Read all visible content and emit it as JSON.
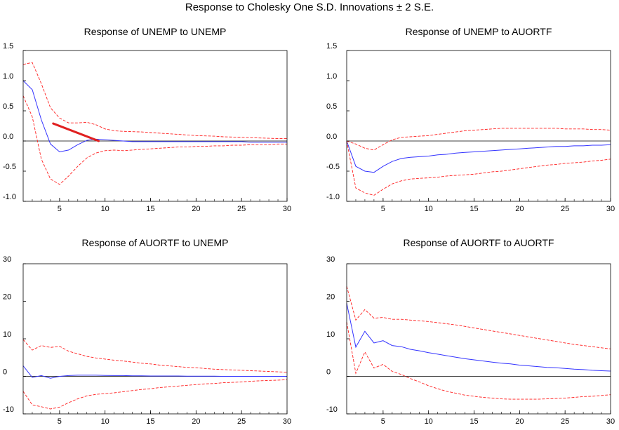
{
  "title": "Response to Cholesky One S.D. Innovations ± 2 S.E.",
  "colors": {
    "response": "#3333ff",
    "bands": "#ff2020",
    "annotation": "#e02020",
    "zero_line": "#000000",
    "frame": "#000000"
  },
  "chart_data": [
    {
      "type": "line",
      "title": "Response of UNEMP to UNEMP",
      "xlim": [
        1,
        30
      ],
      "ylim": [
        -1.0,
        1.5
      ],
      "xticks": [
        5,
        10,
        15,
        20,
        25,
        30
      ],
      "yticks": [
        "1.5",
        "1.0",
        "0.5",
        "0.0",
        "-0.5",
        "-1.0"
      ],
      "x": [
        1,
        2,
        3,
        4,
        5,
        6,
        7,
        8,
        9,
        10,
        11,
        12,
        13,
        14,
        15,
        16,
        17,
        18,
        19,
        20,
        21,
        22,
        23,
        24,
        25,
        26,
        27,
        28,
        29,
        30
      ],
      "series": [
        {
          "role": "response",
          "values": [
            1.0,
            0.85,
            0.35,
            -0.05,
            -0.18,
            -0.15,
            -0.06,
            0.01,
            0.03,
            0.02,
            0.01,
            0.0,
            -0.01,
            -0.01,
            -0.01,
            -0.01,
            -0.01,
            -0.01,
            -0.01,
            -0.01,
            -0.01,
            -0.01,
            -0.01,
            -0.01,
            -0.01,
            -0.02,
            -0.02,
            -0.02,
            -0.02,
            -0.02
          ]
        },
        {
          "role": "upper",
          "values": [
            1.27,
            1.3,
            0.95,
            0.55,
            0.38,
            0.3,
            0.3,
            0.31,
            0.27,
            0.2,
            0.17,
            0.16,
            0.155,
            0.15,
            0.14,
            0.13,
            0.12,
            0.11,
            0.1,
            0.09,
            0.085,
            0.08,
            0.07,
            0.065,
            0.06,
            0.055,
            0.05,
            0.045,
            0.04,
            0.04
          ]
        },
        {
          "role": "lower",
          "values": [
            0.75,
            0.4,
            -0.3,
            -0.63,
            -0.72,
            -0.58,
            -0.42,
            -0.28,
            -0.2,
            -0.16,
            -0.15,
            -0.16,
            -0.15,
            -0.14,
            -0.13,
            -0.12,
            -0.11,
            -0.1,
            -0.1,
            -0.09,
            -0.09,
            -0.08,
            -0.08,
            -0.07,
            -0.07,
            -0.06,
            -0.06,
            -0.06,
            -0.05,
            -0.05
          ]
        }
      ],
      "annotation": {
        "from": [
          4.3,
          0.29
        ],
        "to": [
          9.3,
          0.0
        ]
      }
    },
    {
      "type": "line",
      "title": "Response of UNEMP to AUORTF",
      "xlim": [
        1,
        30
      ],
      "ylim": [
        -1.0,
        1.5
      ],
      "xticks": [
        5,
        10,
        15,
        20,
        25,
        30
      ],
      "yticks": [
        "1.5",
        "1.0",
        "0.5",
        "0.0",
        "-0.5",
        "-1.0"
      ],
      "x": [
        1,
        2,
        3,
        4,
        5,
        6,
        7,
        8,
        9,
        10,
        11,
        12,
        13,
        14,
        15,
        16,
        17,
        18,
        19,
        20,
        21,
        22,
        23,
        24,
        25,
        26,
        27,
        28,
        29,
        30
      ],
      "series": [
        {
          "role": "response",
          "values": [
            0.0,
            -0.42,
            -0.5,
            -0.52,
            -0.42,
            -0.34,
            -0.29,
            -0.27,
            -0.26,
            -0.25,
            -0.23,
            -0.22,
            -0.2,
            -0.19,
            -0.18,
            -0.17,
            -0.16,
            -0.15,
            -0.14,
            -0.13,
            -0.12,
            -0.11,
            -0.1,
            -0.09,
            -0.09,
            -0.08,
            -0.08,
            -0.07,
            -0.07,
            -0.06
          ]
        },
        {
          "role": "upper",
          "values": [
            0.0,
            -0.05,
            -0.12,
            -0.15,
            -0.06,
            0.02,
            0.06,
            0.07,
            0.08,
            0.09,
            0.11,
            0.13,
            0.15,
            0.17,
            0.18,
            0.19,
            0.2,
            0.21,
            0.21,
            0.21,
            0.21,
            0.21,
            0.21,
            0.21,
            0.2,
            0.2,
            0.2,
            0.19,
            0.19,
            0.18
          ]
        },
        {
          "role": "lower",
          "values": [
            0.0,
            -0.78,
            -0.86,
            -0.9,
            -0.8,
            -0.71,
            -0.66,
            -0.63,
            -0.62,
            -0.61,
            -0.6,
            -0.58,
            -0.57,
            -0.56,
            -0.55,
            -0.53,
            -0.51,
            -0.5,
            -0.48,
            -0.46,
            -0.44,
            -0.42,
            -0.4,
            -0.39,
            -0.37,
            -0.36,
            -0.35,
            -0.33,
            -0.32,
            -0.3
          ]
        }
      ]
    },
    {
      "type": "line",
      "title": "Response of AUORTF to UNEMP",
      "xlim": [
        1,
        30
      ],
      "ylim": [
        -10,
        30
      ],
      "xticks": [
        5,
        10,
        15,
        20,
        25,
        30
      ],
      "yticks": [
        "30",
        "20",
        "10",
        "0",
        "-10"
      ],
      "x": [
        1,
        2,
        3,
        4,
        5,
        6,
        7,
        8,
        9,
        10,
        11,
        12,
        13,
        14,
        15,
        16,
        17,
        18,
        19,
        20,
        21,
        22,
        23,
        24,
        25,
        26,
        27,
        28,
        29,
        30
      ],
      "series": [
        {
          "role": "response",
          "values": [
            2.8,
            -0.3,
            0.2,
            -0.5,
            0.0,
            0.2,
            0.3,
            0.3,
            0.3,
            0.25,
            0.2,
            0.2,
            0.15,
            0.15,
            0.1,
            0.1,
            0.1,
            0.1,
            0.05,
            0.05,
            0.05,
            0.05,
            0.0,
            0.0,
            0.0,
            0.0,
            0.0,
            0.0,
            0.0,
            0.0
          ]
        },
        {
          "role": "upper",
          "values": [
            9.8,
            7.0,
            8.2,
            7.7,
            8.0,
            6.7,
            6.0,
            5.3,
            4.9,
            4.6,
            4.3,
            4.1,
            3.8,
            3.5,
            3.3,
            3.0,
            2.8,
            2.6,
            2.4,
            2.3,
            2.1,
            1.9,
            1.8,
            1.7,
            1.6,
            1.5,
            1.4,
            1.3,
            1.2,
            1.1
          ]
        },
        {
          "role": "lower",
          "values": [
            -4.0,
            -7.6,
            -8.1,
            -8.7,
            -8.2,
            -7.0,
            -6.0,
            -5.2,
            -4.8,
            -4.6,
            -4.4,
            -4.1,
            -3.8,
            -3.5,
            -3.3,
            -3.0,
            -2.8,
            -2.6,
            -2.4,
            -2.2,
            -2.0,
            -1.9,
            -1.7,
            -1.6,
            -1.5,
            -1.3,
            -1.2,
            -1.1,
            -1.0,
            -0.9
          ]
        }
      ]
    },
    {
      "type": "line",
      "title": "Response of AUORTF to AUORTF",
      "xlim": [
        1,
        30
      ],
      "ylim": [
        -10,
        30
      ],
      "xticks": [
        5,
        10,
        15,
        20,
        25,
        30
      ],
      "yticks": [
        "30",
        "20",
        "10",
        "0",
        "-10"
      ],
      "x": [
        1,
        2,
        3,
        4,
        5,
        6,
        7,
        8,
        9,
        10,
        11,
        12,
        13,
        14,
        15,
        16,
        17,
        18,
        19,
        20,
        21,
        22,
        23,
        24,
        25,
        26,
        27,
        28,
        29,
        30
      ],
      "series": [
        {
          "role": "response",
          "values": [
            19.5,
            7.8,
            12.0,
            8.9,
            9.5,
            8.2,
            7.9,
            7.2,
            6.8,
            6.3,
            5.9,
            5.5,
            5.1,
            4.7,
            4.4,
            4.1,
            3.8,
            3.5,
            3.3,
            3.0,
            2.8,
            2.6,
            2.4,
            2.3,
            2.1,
            1.9,
            1.8,
            1.6,
            1.5,
            1.4
          ]
        },
        {
          "role": "upper",
          "values": [
            24.0,
            15.0,
            17.8,
            15.5,
            15.7,
            15.2,
            15.2,
            15.0,
            14.8,
            14.6,
            14.3,
            14.0,
            13.7,
            13.3,
            12.9,
            12.5,
            12.1,
            11.7,
            11.3,
            10.9,
            10.5,
            10.1,
            9.7,
            9.3,
            8.9,
            8.5,
            8.2,
            7.9,
            7.6,
            7.3
          ]
        },
        {
          "role": "lower",
          "values": [
            14.5,
            0.8,
            6.5,
            2.2,
            3.2,
            1.3,
            0.5,
            -0.6,
            -1.5,
            -2.5,
            -3.3,
            -4.0,
            -4.5,
            -5.0,
            -5.3,
            -5.6,
            -5.8,
            -6.0,
            -6.1,
            -6.1,
            -6.1,
            -6.1,
            -6.0,
            -5.9,
            -5.8,
            -5.6,
            -5.4,
            -5.3,
            -5.1,
            -4.9
          ]
        }
      ]
    }
  ]
}
